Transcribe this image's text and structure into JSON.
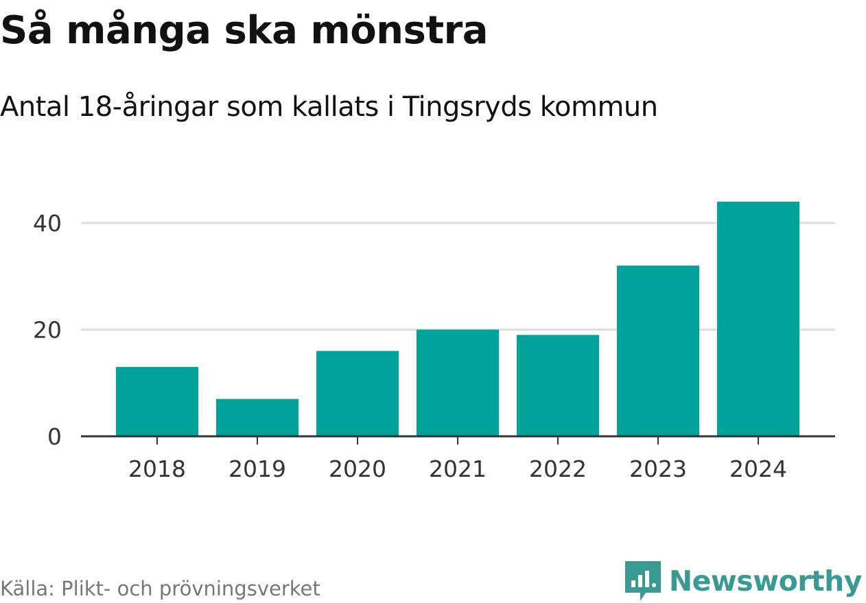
{
  "chart_data": {
    "type": "bar",
    "title": "Så många ska mönstra",
    "subtitle": "Antal 18-åringar som kallats i Tingsryds kommun",
    "categories": [
      "2018",
      "2019",
      "2020",
      "2021",
      "2022",
      "2023",
      "2024"
    ],
    "values": [
      13,
      7,
      16,
      20,
      19,
      32,
      44
    ],
    "xlabel": "",
    "ylabel": "",
    "ylim": [
      0,
      44
    ],
    "yticks": [
      "0",
      "20",
      "40"
    ],
    "grid": true,
    "bar_color": "#00a39a",
    "grid_color": "#dddddd",
    "axis_color": "#333333"
  },
  "footer": {
    "source": "Källa: Plikt- och prövningsverket",
    "brand": "Newsworthy",
    "brand_icon": "newsworthy-logo-icon",
    "brand_color": "#3a9a92"
  }
}
